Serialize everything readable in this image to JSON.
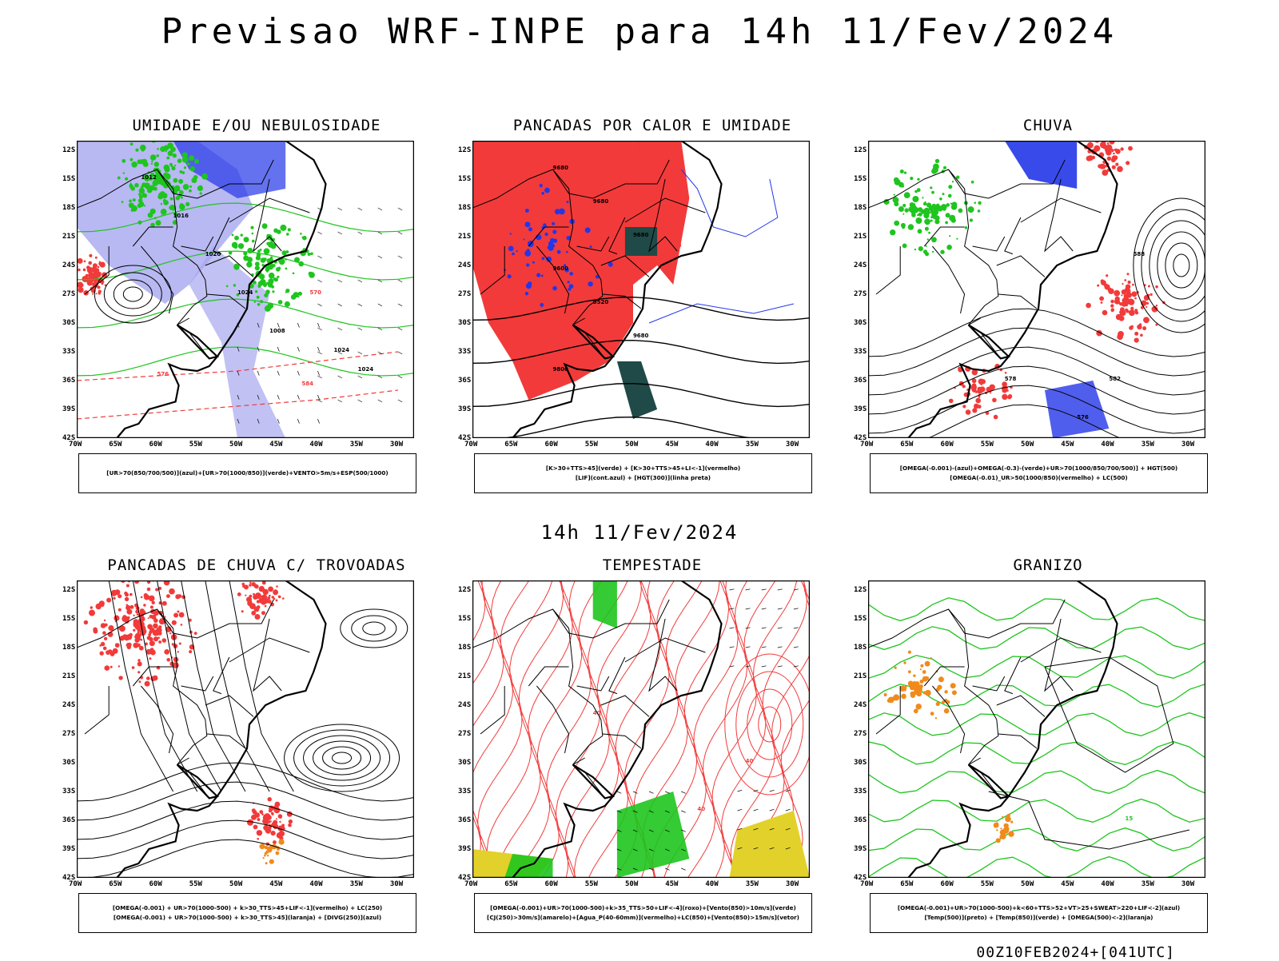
{
  "title": "Previsao WRF-INPE  para 14h 11/Fev/2024",
  "subtitle": "14h 11/Fev/2024",
  "footer": "00Z10FEB2024+[041UTC]",
  "axes": {
    "lat": [
      "12S",
      "15S",
      "18S",
      "21S",
      "24S",
      "27S",
      "30S",
      "33S",
      "36S",
      "39S",
      "42S"
    ],
    "lon": [
      "70W",
      "65W",
      "60W",
      "55W",
      "50W",
      "45W",
      "40W",
      "35W",
      "30W"
    ]
  },
  "colors": {
    "red": "#f23a3a",
    "green": "#1ec51e",
    "blue": "#2436e8",
    "lavender": "#a6a6ef",
    "darkteal": "#1f4a47",
    "yellow": "#e2d12a",
    "orange": "#f08a1c",
    "black": "#000000"
  },
  "panels": [
    {
      "title": "UMIDADE E/OU NEBULOSIDADE",
      "legend": [
        "[UR>70(850/700/500)](azul)+[UR>70(1000/850)](verde)+VENTO>5m/s+ESP(500/1000)"
      ],
      "labels": [
        "1012",
        "1016",
        "1020",
        "1024",
        "1008",
        "570",
        "576",
        "584"
      ]
    },
    {
      "title": "PANCADAS POR CALOR E UMIDADE",
      "legend": [
        "[K>30+TTS>45](verde) + [K>30+TTS>45+LI<-1](vermelho)",
        "[LIF](cont.azul) + [HGT(300)](linha preta)"
      ],
      "labels": [
        "9680",
        "9600",
        "9520",
        "9680",
        "9800"
      ]
    },
    {
      "title": "CHUVA",
      "legend": [
        "[OMEGA(-0.001)-(azul)+OMEGA(-0.3)-(verde)+UR>70(1000/850/700/500)] + HGT(500)",
        "[OMEGA(-0.01)_UR>50(1000/850)(vermelho) + LC(500)"
      ],
      "labels": [
        "588",
        "588",
        "582",
        "576",
        "578",
        "576"
      ]
    },
    {
      "title": "PANCADAS DE CHUVA C/ TROVOADAS",
      "legend": [
        "[OMEGA(-0.001) + UR>70(1000-500) + k>30_TTS>45+LIF<-1](vermelho) + LC(250)",
        "[OMEGA(-0.001) + UR>70(1000-500) + k>30_TTS>45](laranja) + [DIVG(250)](azul)"
      ],
      "labels": []
    },
    {
      "title": "TEMPESTADE",
      "legend": [
        "[OMEGA(-0.001)+UR>70(1000-500)+k>35_TTS>50+LIF<-4](roxo)+[Vento(850)>10m/s](verde)",
        "[CJ(250)>30m/s](amarelo)+[Agua_P(40-60mm)](vermelho)+LC(850)+[Vento(850)>15m/s](vetor)"
      ],
      "labels": [
        "40",
        "40",
        "40",
        "40"
      ]
    },
    {
      "title": "GRANIZO",
      "legend": [
        "[OMEGA(-0.001)+UR>70(1000-500)+k<60+TTS>52+VT>25+SWEAT>220+LIF<-2](azul)",
        "[Temp(500)](preto) + [Temp(850)](verde) + [OMEGA(500)<-2](laranja)"
      ],
      "labels": [
        "15"
      ]
    }
  ]
}
